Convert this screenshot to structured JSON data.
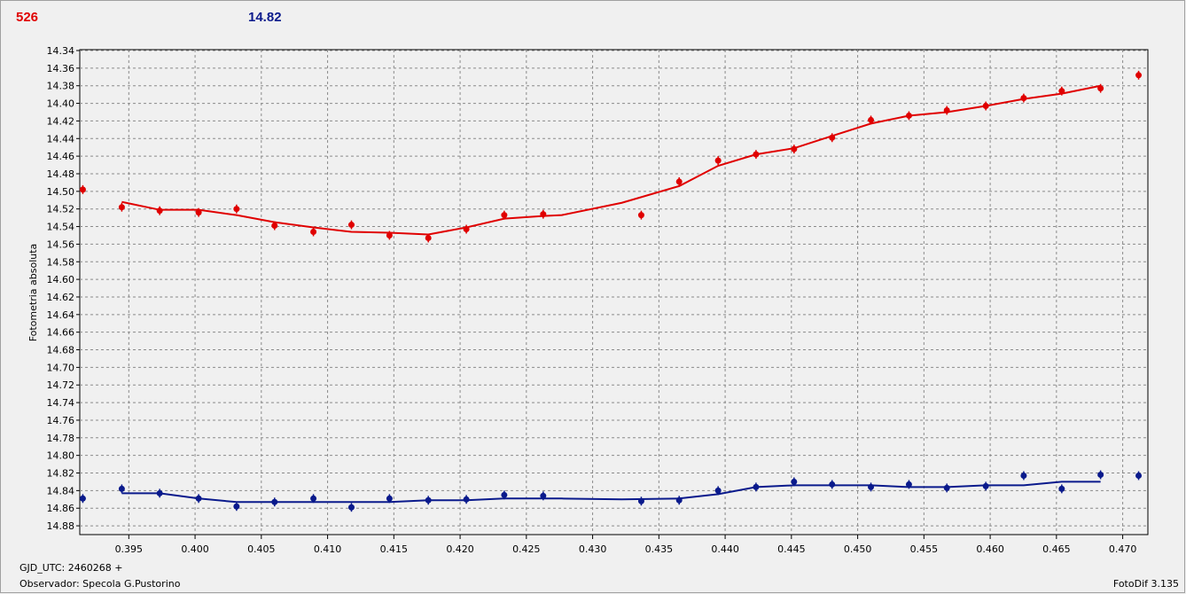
{
  "chart_data": {
    "type": "scatter",
    "header": {
      "left": "526",
      "right": "14.82",
      "left_color": "#e00000",
      "right_color": "#0a1a8c"
    },
    "ylabel": "Fotometria absoluta",
    "footer": {
      "date": "GJD_UTC: 2460268 +",
      "observer": "Observador: Specola G.Pustorino",
      "software": "FotoDif 3.135"
    },
    "grid": true,
    "xlim": [
      0.3913,
      0.4719
    ],
    "ylim": [
      14.89,
      14.34
    ],
    "xticks": [
      0.395,
      {
        "value": 0.4,
        "label": "0.400"
      },
      0.405,
      {
        "value": 0.41,
        "label": "0.410"
      },
      0.415,
      {
        "value": 0.42,
        "label": "0.420"
      },
      0.425,
      {
        "value": 0.43,
        "label": "0.430"
      },
      0.435,
      {
        "value": 0.44,
        "label": "0.440"
      },
      0.445,
      {
        "value": 0.45,
        "label": "0.450"
      },
      0.455,
      {
        "value": 0.46,
        "label": "0.460"
      },
      0.465,
      {
        "value": 0.47,
        "label": "0.470"
      }
    ],
    "yticks": [
      14.34,
      14.36,
      14.38,
      {
        "value": 14.4,
        "label": "14.40"
      },
      14.42,
      14.44,
      14.46,
      14.48,
      {
        "value": 14.5,
        "label": "14.50"
      },
      14.52,
      14.54,
      14.56,
      14.58,
      {
        "value": 14.6,
        "label": "14.60"
      },
      14.62,
      14.64,
      14.66,
      14.68,
      {
        "value": 14.7,
        "label": "14.70"
      },
      14.72,
      14.74,
      14.76,
      14.78,
      {
        "value": 14.8,
        "label": "14.80"
      },
      14.82,
      14.84,
      14.86,
      14.88
    ],
    "series": [
      {
        "color": "#e00000",
        "error": 0.005,
        "x": [
          0.39153,
          0.39447,
          0.39733,
          0.40027,
          0.40313,
          0.406,
          0.40893,
          0.4118,
          0.41467,
          0.4176,
          0.42047,
          0.42333,
          0.42627,
          0.43367,
          0.43653,
          0.43947,
          0.44233,
          0.4452,
          0.44807,
          0.451,
          0.45387,
          0.45673,
          0.45967,
          0.46253,
          0.4654,
          0.46833,
          0.4712
        ],
        "values": [
          14.498,
          14.518,
          14.522,
          14.524,
          14.52,
          14.539,
          14.546,
          14.538,
          14.55,
          14.553,
          14.543,
          14.527,
          14.526,
          14.527,
          14.489,
          14.465,
          14.458,
          14.452,
          14.439,
          14.419,
          14.414,
          14.408,
          14.403,
          14.394,
          14.386,
          14.383,
          14.368
        ],
        "fit": {
          "x": [
            0.39447,
            0.39733,
            0.40027,
            0.40313,
            0.406,
            0.40893,
            0.4118,
            0.41467,
            0.4176,
            0.42047,
            0.42333,
            0.42627,
            0.42767,
            0.4322,
            0.43653,
            0.43947,
            0.44233,
            0.4452,
            0.44807,
            0.451,
            0.45387,
            0.45673,
            0.45967,
            0.46253,
            0.4654,
            0.46833
          ],
          "values": [
            14.512,
            14.521,
            14.521,
            14.527,
            14.535,
            14.541,
            14.546,
            14.547,
            14.549,
            14.541,
            14.531,
            14.528,
            14.527,
            14.513,
            14.494,
            14.471,
            14.458,
            14.451,
            14.437,
            14.423,
            14.414,
            14.41,
            14.403,
            14.395,
            14.389,
            14.38
          ]
        }
      },
      {
        "color": "#0a1a8c",
        "error": 0.005,
        "x": [
          0.39153,
          0.39447,
          0.39733,
          0.40027,
          0.40313,
          0.406,
          0.40893,
          0.4118,
          0.41467,
          0.4176,
          0.42047,
          0.42333,
          0.42627,
          0.43367,
          0.43653,
          0.43947,
          0.44233,
          0.4452,
          0.44807,
          0.451,
          0.45387,
          0.45673,
          0.45967,
          0.46253,
          0.4654,
          0.46833,
          0.4712
        ],
        "values": [
          14.849,
          14.838,
          14.843,
          14.849,
          14.858,
          14.853,
          14.849,
          14.859,
          14.849,
          14.851,
          14.85,
          14.845,
          14.846,
          14.852,
          14.851,
          14.84,
          14.836,
          14.83,
          14.833,
          14.836,
          14.833,
          14.837,
          14.835,
          14.823,
          14.838,
          14.822,
          14.823
        ],
        "fit": {
          "x": [
            0.39447,
            0.39733,
            0.40027,
            0.40313,
            0.406,
            0.40893,
            0.4118,
            0.41467,
            0.4176,
            0.42047,
            0.42333,
            0.42627,
            0.42767,
            0.4322,
            0.43653,
            0.43947,
            0.44233,
            0.4452,
            0.44807,
            0.451,
            0.45387,
            0.45673,
            0.45967,
            0.46253,
            0.4654,
            0.46833
          ],
          "values": [
            14.843,
            14.843,
            14.849,
            14.853,
            14.853,
            14.853,
            14.853,
            14.853,
            14.851,
            14.851,
            14.849,
            14.849,
            14.849,
            14.85,
            14.849,
            14.844,
            14.836,
            14.834,
            14.834,
            14.834,
            14.836,
            14.836,
            14.834,
            14.834,
            14.83,
            14.83
          ]
        }
      }
    ]
  }
}
